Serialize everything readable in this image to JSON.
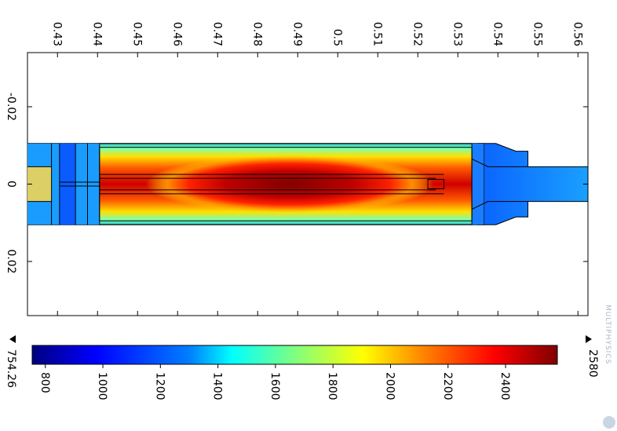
{
  "chart_data": {
    "type": "heatmap",
    "title": "",
    "xlabel": "",
    "ylabel": "",
    "x_axis": {
      "ticks": [
        0.43,
        0.44,
        0.45,
        0.46,
        0.47,
        0.48,
        0.49,
        0.5,
        0.51,
        0.52,
        0.53,
        0.54,
        0.55,
        0.56
      ],
      "tick_labels": [
        "0.43",
        "0.44",
        "0.45",
        "0.46",
        "0.47",
        "0.48",
        "0.49",
        "0.5",
        "0.51",
        "0.52",
        "0.53",
        "0.54",
        "0.55",
        "0.56"
      ],
      "range": [
        0.4225,
        0.5625
      ]
    },
    "y_axis": {
      "ticks": [
        -0.02,
        0,
        0.02
      ],
      "tick_labels": [
        "-0.02",
        "0",
        "0.02"
      ],
      "range": [
        -0.034,
        0.034
      ]
    },
    "colorbar": {
      "min": 754.26,
      "max": 2580,
      "min_label": "754.26",
      "max_label": "2580",
      "ticks": [
        800,
        1000,
        1200,
        1400,
        1600,
        1800,
        2000,
        2200,
        2400
      ],
      "tick_labels": [
        "800",
        "1000",
        "1200",
        "1400",
        "1600",
        "1800",
        "2000",
        "2200",
        "2400"
      ],
      "colormap": "rainbow",
      "stops": [
        "#00007f",
        "#0000ff",
        "#007fff",
        "#00ffff",
        "#7fff7f",
        "#ffff00",
        "#ff7f00",
        "#ff0000",
        "#7f0000"
      ]
    },
    "field": {
      "hot_core": {
        "x": [
          0.452,
          0.524
        ],
        "y": [
          -0.0055,
          0.0055
        ],
        "value": 2580
      },
      "body": {
        "x": [
          0.4225,
          0.5365
        ],
        "y": [
          -0.0105,
          0.0105
        ],
        "edge_value": 1450
      },
      "outlet_tip": {
        "x": [
          0.5365,
          0.5625
        ],
        "y": [
          -0.0045,
          0.0045
        ],
        "value": 1150
      }
    },
    "grid": false,
    "legend": "none"
  },
  "watermark": {
    "label": "MULTIPHYSICS"
  }
}
